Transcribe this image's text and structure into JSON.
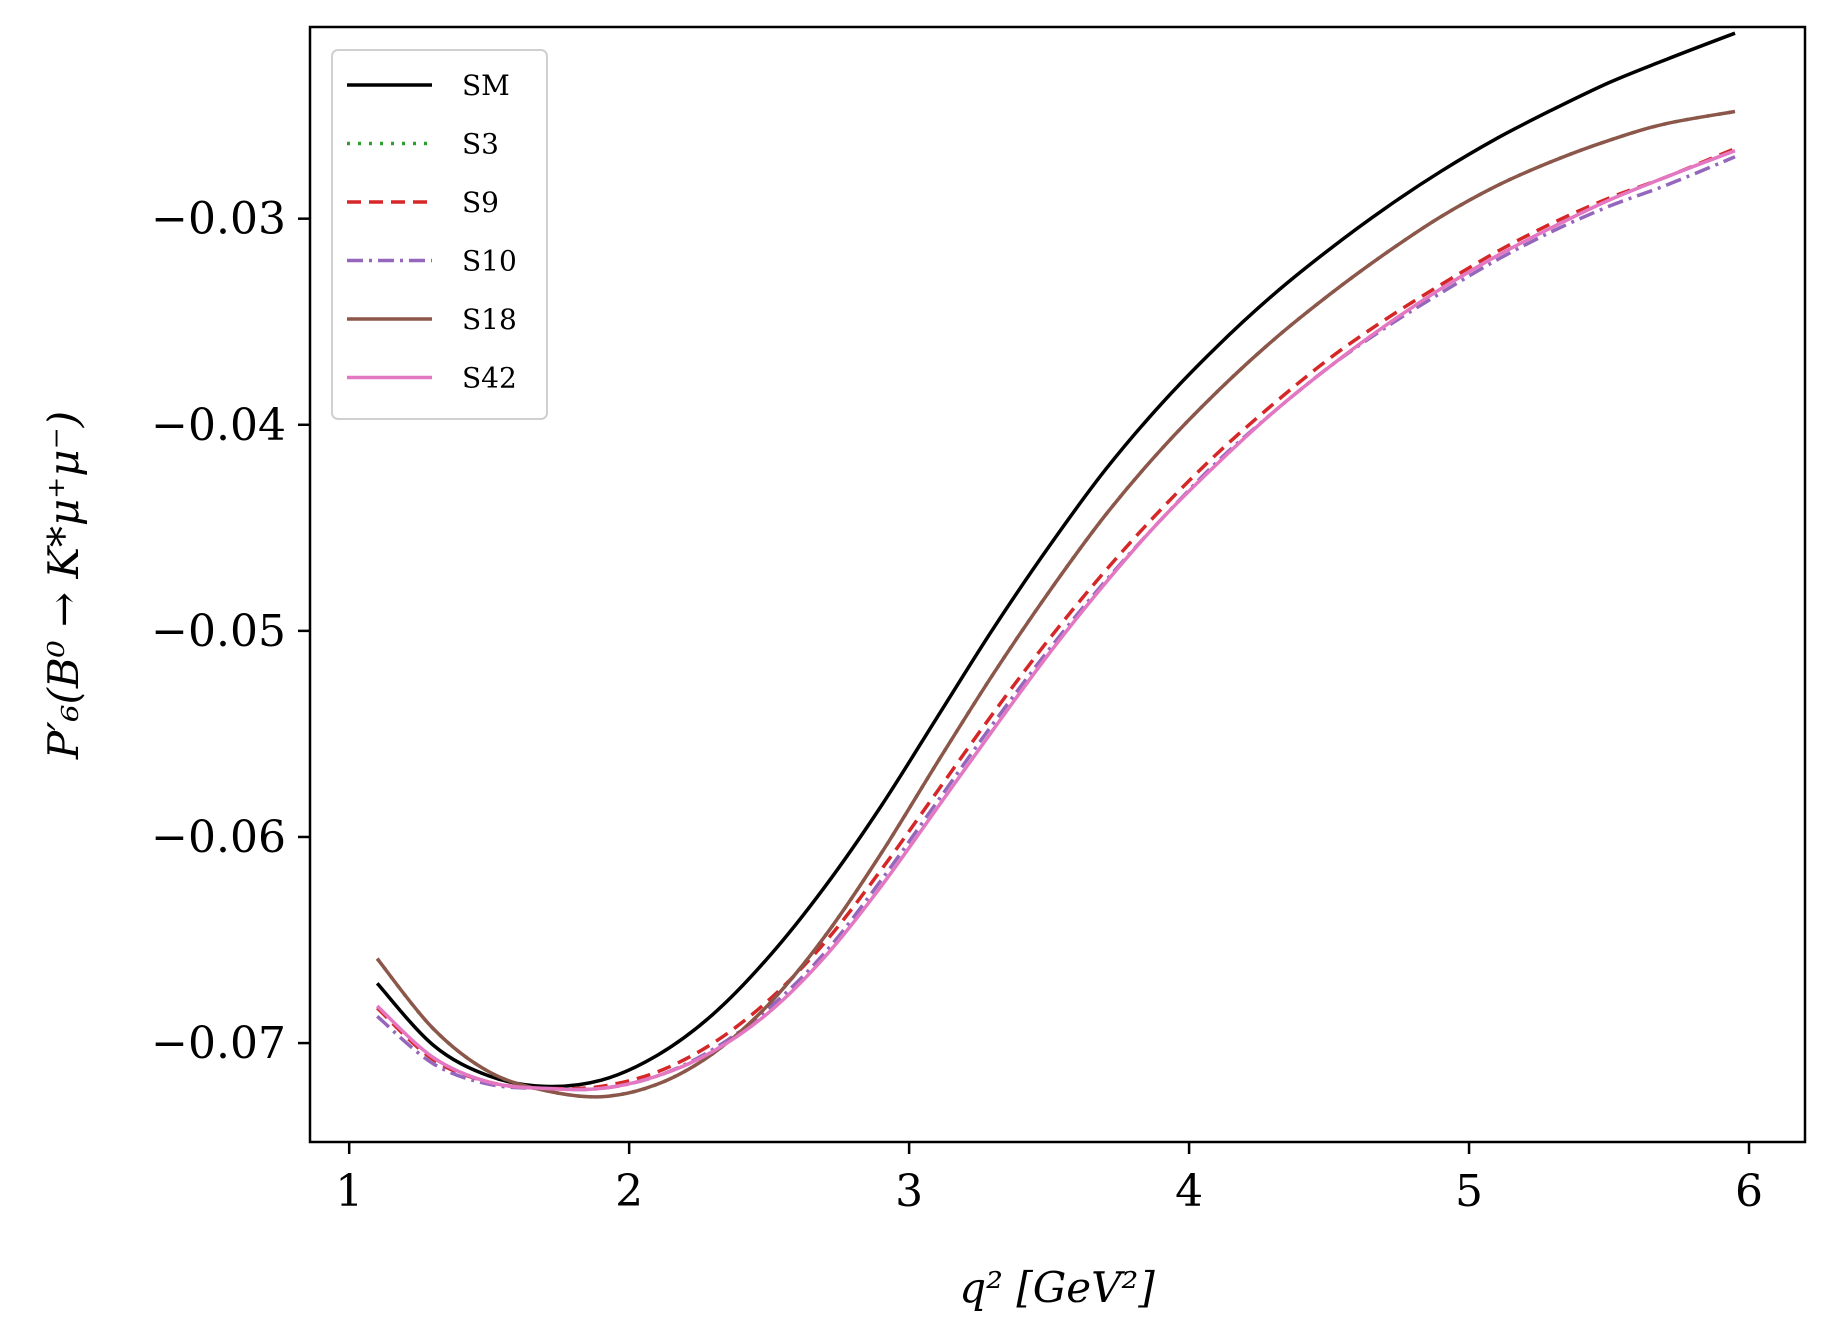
{
  "chart_data": {
    "type": "line",
    "title": "",
    "xlabel": "q² [GeV²]",
    "ylabel": "P′₆(B⁰ → K*μ⁺μ⁻)",
    "xlim": [
      0.86,
      6.2
    ],
    "ylim": [
      -0.0748,
      -0.0207
    ],
    "x_ticks": [
      1,
      2,
      3,
      4,
      5,
      6
    ],
    "x_tick_labels": [
      "1",
      "2",
      "3",
      "4",
      "5",
      "6"
    ],
    "y_ticks": [
      -0.07,
      -0.06,
      -0.05,
      -0.04,
      -0.03
    ],
    "y_tick_labels": [
      "−0.07",
      "−0.06",
      "−0.05",
      "−0.04",
      "−0.03"
    ],
    "grid": false,
    "legend_position": "upper-left",
    "x": [
      1.1,
      1.3,
      1.5,
      1.7,
      1.9,
      2.1,
      2.3,
      2.5,
      2.7,
      2.9,
      3.1,
      3.3,
      3.5,
      3.7,
      3.9,
      4.1,
      4.3,
      4.5,
      4.7,
      4.9,
      5.1,
      5.3,
      5.5,
      5.7,
      5.95
    ],
    "series": [
      {
        "name": "SM",
        "color": "#000000",
        "dash": "solid",
        "values": [
          -0.0671,
          -0.0701,
          -0.0716,
          -0.0721,
          -0.0718,
          -0.0706,
          -0.0686,
          -0.0658,
          -0.0624,
          -0.0585,
          -0.0542,
          -0.0499,
          -0.0459,
          -0.0422,
          -0.039,
          -0.0362,
          -0.0337,
          -0.0315,
          -0.0295,
          -0.0277,
          -0.0261,
          -0.0247,
          -0.0234,
          -0.0223,
          -0.021
        ]
      },
      {
        "name": "S3",
        "color": "#2ca02c",
        "dash": "dotted",
        "values": [
          -0.0659,
          -0.0693,
          -0.0714,
          -0.0723,
          -0.0726,
          -0.072,
          -0.0705,
          -0.0681,
          -0.0648,
          -0.0608,
          -0.0564,
          -0.0521,
          -0.0481,
          -0.0444,
          -0.0412,
          -0.0384,
          -0.0359,
          -0.0337,
          -0.0317,
          -0.0299,
          -0.0284,
          -0.0272,
          -0.0262,
          -0.0254,
          -0.0248
        ]
      },
      {
        "name": "S9",
        "color": "#d62728",
        "dash": "dashed",
        "values": [
          -0.0683,
          -0.0708,
          -0.0719,
          -0.0722,
          -0.0721,
          -0.0714,
          -0.07,
          -0.0679,
          -0.0651,
          -0.0616,
          -0.0578,
          -0.054,
          -0.0504,
          -0.0471,
          -0.0441,
          -0.0414,
          -0.039,
          -0.0368,
          -0.0349,
          -0.0332,
          -0.0316,
          -0.0302,
          -0.029,
          -0.028,
          -0.0266
        ]
      },
      {
        "name": "S10",
        "color": "#9467bd",
        "dash": "dashdot",
        "values": [
          -0.0687,
          -0.071,
          -0.072,
          -0.0722,
          -0.0722,
          -0.0716,
          -0.0703,
          -0.0683,
          -0.0656,
          -0.0621,
          -0.0583,
          -0.0545,
          -0.0509,
          -0.0476,
          -0.0446,
          -0.0418,
          -0.0394,
          -0.0372,
          -0.0353,
          -0.0336,
          -0.032,
          -0.0306,
          -0.0294,
          -0.0284,
          -0.027
        ]
      },
      {
        "name": "S18",
        "color": "#8c564b",
        "dash": "solid",
        "values": [
          -0.0659,
          -0.0693,
          -0.0714,
          -0.0723,
          -0.0726,
          -0.072,
          -0.0705,
          -0.0681,
          -0.0648,
          -0.0608,
          -0.0564,
          -0.0521,
          -0.0481,
          -0.0444,
          -0.0412,
          -0.0384,
          -0.0359,
          -0.0337,
          -0.0317,
          -0.0299,
          -0.0284,
          -0.0272,
          -0.0262,
          -0.0254,
          -0.0248
        ]
      },
      {
        "name": "S42",
        "color": "#e377c2",
        "dash": "solid",
        "values": [
          -0.0682,
          -0.0707,
          -0.0719,
          -0.0722,
          -0.0722,
          -0.0716,
          -0.0704,
          -0.0685,
          -0.0658,
          -0.0624,
          -0.0586,
          -0.0548,
          -0.0511,
          -0.0477,
          -0.0446,
          -0.0419,
          -0.0394,
          -0.0372,
          -0.0352,
          -0.0334,
          -0.0318,
          -0.0304,
          -0.0291,
          -0.028,
          -0.0267
        ]
      }
    ]
  }
}
